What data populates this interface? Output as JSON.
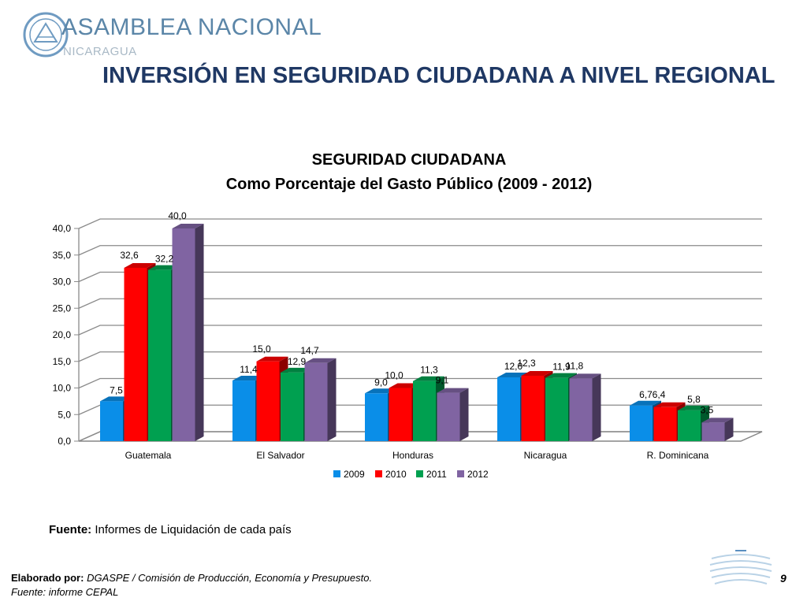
{
  "header": {
    "org_name": "ASAMBLEA NACIONAL",
    "org_sub": "NICARAGUA",
    "slide_title": "INVERSIÓN EN SEGURIDAD CIUDADANA A NIVEL REGIONAL"
  },
  "chart_data": {
    "type": "bar",
    "title": "SEGURIDAD CIUDADANA",
    "subtitle": "Como Porcentaje del Gasto Público (2009 - 2012)",
    "categories": [
      "Guatemala",
      "El Salvador",
      "Honduras",
      "Nicaragua",
      "R. Dominicana"
    ],
    "series": [
      {
        "name": "2009",
        "color": "#0a8ee8",
        "values": [
          7.5,
          11.4,
          9.0,
          12.0,
          6.7
        ],
        "labels": [
          "7,5",
          "11,4",
          "9,0",
          "12,0",
          "6,7"
        ]
      },
      {
        "name": "2010",
        "color": "#ff0000",
        "values": [
          32.6,
          15.0,
          10.0,
          12.3,
          6.4
        ],
        "labels": [
          "32,6",
          "15,0",
          "10,0",
          "12,3",
          "6,4"
        ]
      },
      {
        "name": "2011",
        "color": "#00a050",
        "values": [
          32.2,
          12.9,
          11.3,
          11.9,
          5.8
        ],
        "labels": [
          "32,2",
          "12,9",
          "11,3",
          "11,9",
          "5,8"
        ]
      },
      {
        "name": "2012",
        "color": "#8064a2",
        "values": [
          40.0,
          14.7,
          9.1,
          11.8,
          3.5
        ],
        "labels": [
          "40,0",
          "14,7",
          "9,1",
          "11,8",
          "3,5"
        ]
      }
    ],
    "y_ticks": [
      "0,0",
      "5,0",
      "10,0",
      "15,0",
      "20,0",
      "25,0",
      "30,0",
      "35,0",
      "40,0"
    ],
    "ylim": [
      0,
      40
    ],
    "grid": true,
    "legend_position": "bottom"
  },
  "source": {
    "label": "Fuente:",
    "text": "Informes de Liquidación de cada país"
  },
  "footer": {
    "credit_label": "Elaborado por:",
    "credit_text": "DGASPE / Comisión de Producción, Economía y Presupuesto.",
    "source_text": "Fuente: informe CEPAL",
    "page_number": "9"
  }
}
